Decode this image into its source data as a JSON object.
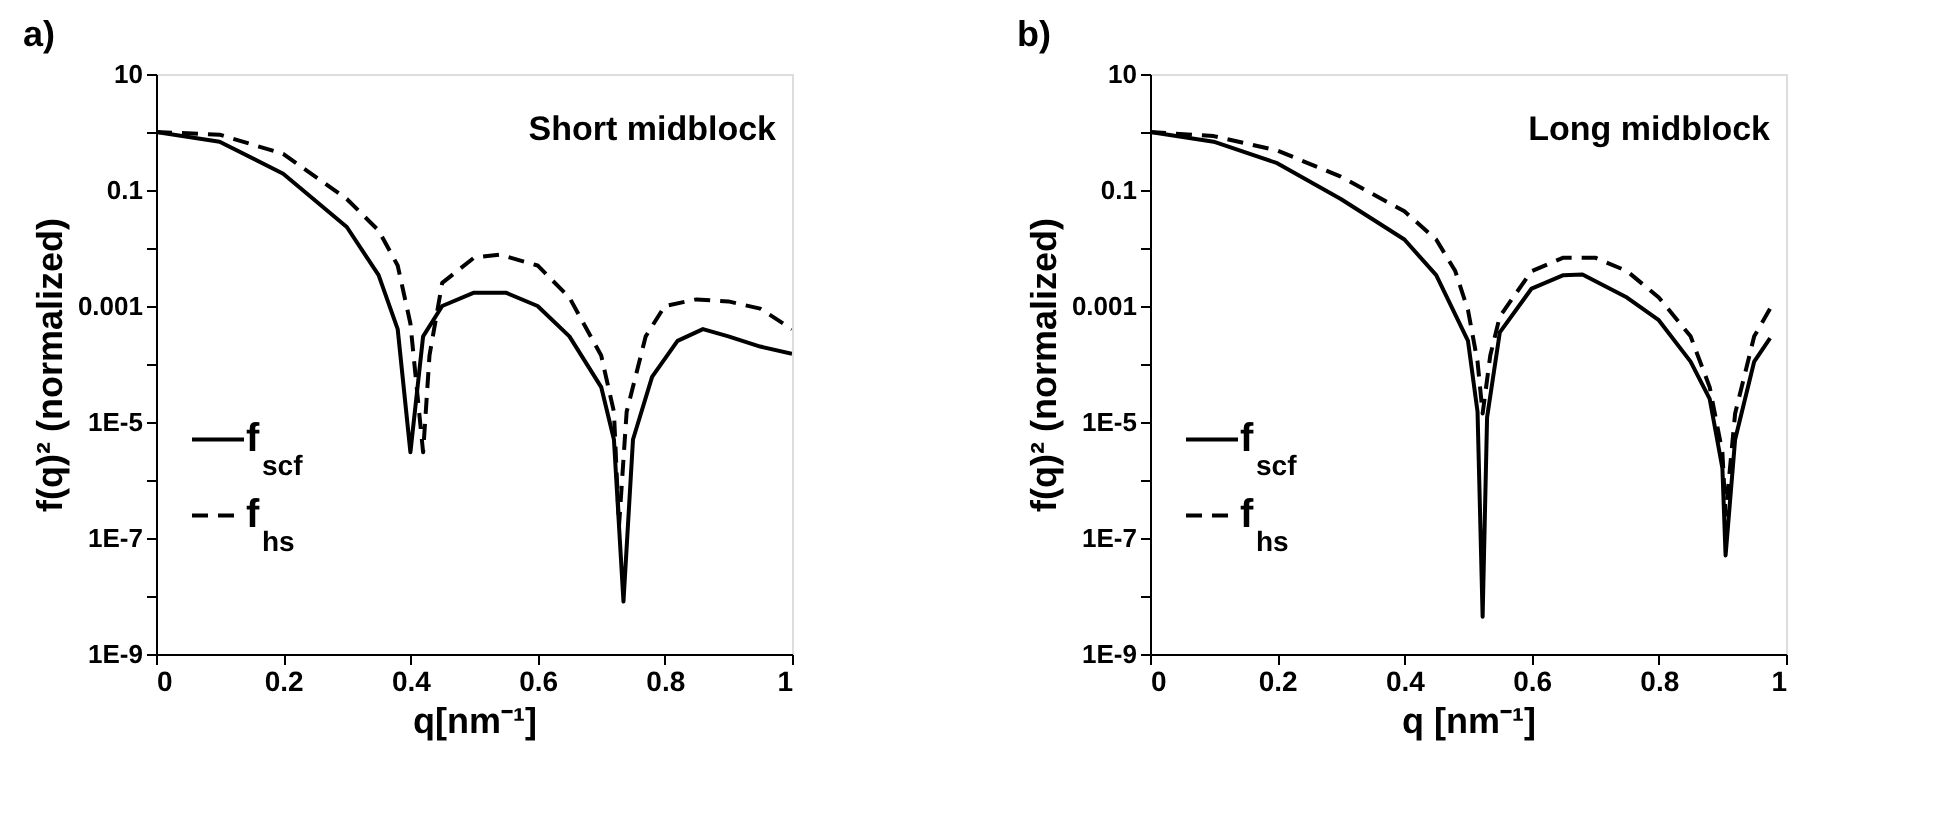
{
  "chart_data": [
    {
      "type": "line",
      "title": "a)",
      "xlabel": "q[nm⁻¹]",
      "ylabel": "f(q)² (normalized)",
      "annotations": [
        "Short midblock"
      ],
      "log": "y",
      "grid": false,
      "legend": "left",
      "marker": "none",
      "xlim": [
        0,
        1
      ],
      "xticks": [
        0,
        0.2,
        0.4,
        0.6,
        0.8,
        1
      ],
      "ylim": [
        1e-09,
        10
      ],
      "yticks": [
        10,
        {
          "value": 1,
          "label": null
        },
        0.1,
        {
          "value": 0.01,
          "label": null
        },
        0.001,
        {
          "value": 0.0001,
          "label": null
        },
        {
          "value": 1e-05,
          "label": "1E-5"
        },
        {
          "value": 1e-06,
          "label": null
        },
        {
          "value": 1e-07,
          "label": "1E-7"
        },
        {
          "value": 1e-08,
          "label": null
        },
        {
          "value": 1e-09,
          "label": "1E-9"
        }
      ],
      "series": [
        {
          "name": "f$_{scf}$",
          "color": "#000000",
          "line_style": "solid",
          "x": [
            0,
            0.1,
            0.2,
            0.3,
            0.35,
            0.38,
            0.4,
            0.42,
            0.45,
            0.5,
            0.55,
            0.6,
            0.65,
            0.7,
            0.72,
            0.735,
            0.75,
            0.78,
            0.82,
            0.86,
            0.9,
            0.95,
            1
          ],
          "values": [
            1,
            0.68,
            0.19,
            0.023,
            0.0034,
            0.0004,
            3e-06,
            0.0003,
            0.001,
            0.0017,
            0.0017,
            0.001,
            0.0003,
            4e-05,
            5e-06,
            8e-09,
            5e-06,
            6e-05,
            0.00025,
            0.0004,
            0.0003,
            0.0002,
            0.00015
          ]
        },
        {
          "name": "f$_{hs}$",
          "color": "#000000",
          "line_style": "dashed",
          "x": [
            0,
            0.1,
            0.2,
            0.3,
            0.35,
            0.38,
            0.4,
            0.42,
            0.43,
            0.45,
            0.5,
            0.54,
            0.6,
            0.65,
            0.7,
            0.72,
            0.728,
            0.74,
            0.77,
            0.8,
            0.85,
            0.9,
            0.95,
            1
          ],
          "values": [
            1,
            0.9,
            0.42,
            0.07,
            0.02,
            0.005,
            0.0005,
            3e-06,
            0.00014,
            0.0025,
            0.0068,
            0.0077,
            0.005,
            0.0014,
            0.00014,
            1.5e-05,
            1.6e-07,
            1.5e-05,
            0.0003,
            0.001,
            0.0013,
            0.0012,
            0.0009,
            0.0004
          ]
        }
      ]
    },
    {
      "type": "line",
      "title": "b)",
      "xlabel": "q [nm⁻¹]",
      "ylabel": "f(q)² (normalized)",
      "annotations": [
        "Long midblock"
      ],
      "log": "y",
      "grid": false,
      "legend": "left",
      "marker": "none",
      "xlim": [
        0,
        1
      ],
      "xticks": [
        0,
        0.2,
        0.4,
        0.6,
        0.8,
        1
      ],
      "ylim": [
        1e-09,
        10
      ],
      "yticks": [
        10,
        {
          "value": 1,
          "label": null
        },
        0.1,
        {
          "value": 0.01,
          "label": null
        },
        0.001,
        {
          "value": 0.0001,
          "label": null
        },
        {
          "value": 1e-05,
          "label": "1E-5"
        },
        {
          "value": 1e-06,
          "label": null
        },
        {
          "value": 1e-07,
          "label": "1E-7"
        },
        {
          "value": 1e-08,
          "label": null
        },
        {
          "value": 1e-09,
          "label": "1E-9"
        }
      ],
      "series": [
        {
          "name": "f$_{scf}$",
          "color": "#000000",
          "line_style": "solid",
          "x": [
            0,
            0.1,
            0.2,
            0.3,
            0.4,
            0.45,
            0.5,
            0.515,
            0.523,
            0.53,
            0.55,
            0.6,
            0.65,
            0.68,
            0.75,
            0.8,
            0.85,
            0.88,
            0.9,
            0.905,
            0.92,
            0.95,
            0.975
          ],
          "values": [
            1,
            0.68,
            0.29,
            0.07,
            0.014,
            0.0034,
            0.00025,
            1.5e-05,
            4.4e-09,
            1.2e-05,
            0.00035,
            0.002,
            0.0034,
            0.0035,
            0.0014,
            0.00057,
            0.00011,
            2.5e-05,
            1.6e-06,
            5e-08,
            5e-06,
            0.00011,
            0.00028
          ]
        },
        {
          "name": "f$_{hs}$",
          "color": "#000000",
          "line_style": "dashed",
          "x": [
            0,
            0.1,
            0.2,
            0.3,
            0.4,
            0.45,
            0.48,
            0.5,
            0.515,
            0.523,
            0.535,
            0.55,
            0.6,
            0.65,
            0.7,
            0.75,
            0.8,
            0.85,
            0.88,
            0.9,
            0.905,
            0.92,
            0.95,
            0.975
          ],
          "values": [
            1,
            0.85,
            0.48,
            0.17,
            0.043,
            0.014,
            0.004,
            0.00085,
            0.00011,
            1.4e-05,
            0.00014,
            0.00066,
            0.004,
            0.0068,
            0.0068,
            0.004,
            0.0014,
            0.0003,
            4e-05,
            3e-06,
            2.5e-07,
            1.4e-05,
            0.0003,
            0.0009
          ]
        }
      ]
    }
  ]
}
